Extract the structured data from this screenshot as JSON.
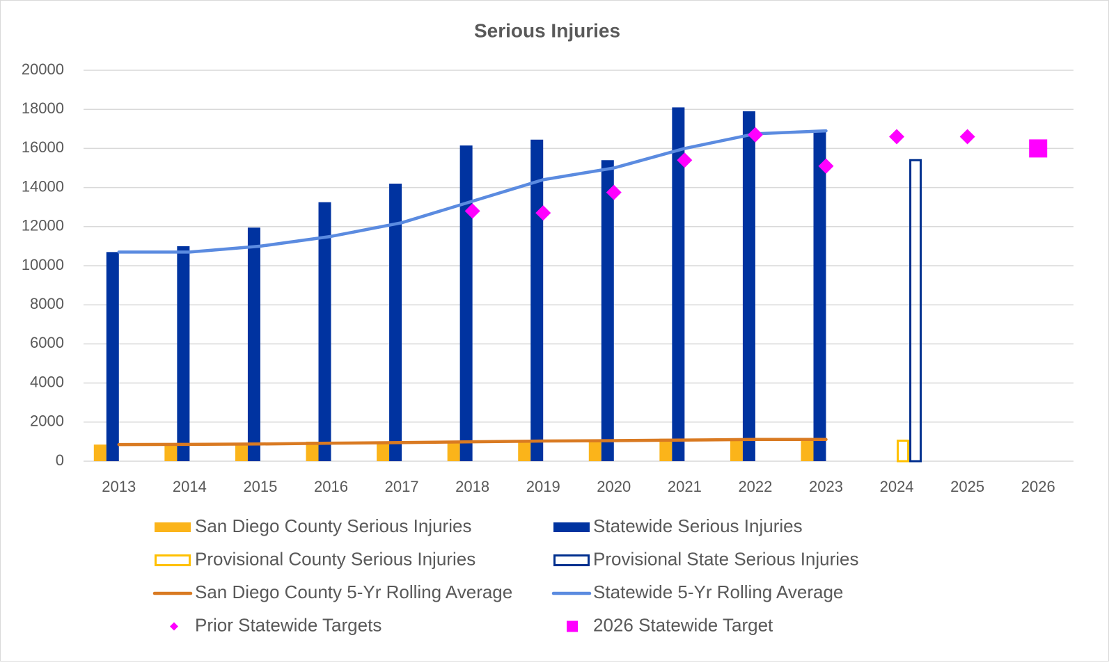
{
  "chart_data": {
    "type": "combo",
    "title": "Serious Injuries",
    "categories": [
      "2013",
      "2014",
      "2015",
      "2016",
      "2017",
      "2018",
      "2019",
      "2020",
      "2021",
      "2022",
      "2023",
      "2024",
      "2025",
      "2026"
    ],
    "ylim": [
      0,
      20000
    ],
    "yticks": [
      0,
      2000,
      4000,
      6000,
      8000,
      10000,
      12000,
      14000,
      16000,
      18000,
      20000
    ],
    "grid": true,
    "series": [
      {
        "name": "San Diego County Serious Injuries",
        "type": "bar",
        "color": "#fbb41a",
        "values": [
          850,
          880,
          900,
          1000,
          950,
          1050,
          1050,
          1050,
          1150,
          1100,
          1100,
          null,
          null,
          null
        ]
      },
      {
        "name": "Statewide Serious Injuries",
        "type": "bar",
        "color": "#0033a0",
        "values": [
          10700,
          11000,
          11950,
          13250,
          14200,
          16150,
          16450,
          15400,
          18100,
          17900,
          16900,
          null,
          null,
          null
        ]
      },
      {
        "name": "Provisional County Serious Injuries",
        "type": "bar-outline",
        "color": "#ffc000",
        "values": [
          null,
          null,
          null,
          null,
          null,
          null,
          null,
          null,
          null,
          null,
          null,
          1050,
          null,
          null
        ]
      },
      {
        "name": "Provisional State Serious Injuries",
        "type": "bar-outline",
        "color": "#002f8e",
        "values": [
          null,
          null,
          null,
          null,
          null,
          null,
          null,
          null,
          null,
          null,
          null,
          15400,
          null,
          null
        ]
      },
      {
        "name": "San Diego County 5-Yr Rolling Average",
        "type": "line",
        "color": "#d97a22",
        "values": [
          850,
          860,
          880,
          920,
          950,
          990,
          1030,
          1050,
          1080,
          1110,
          1110,
          null,
          null,
          null
        ]
      },
      {
        "name": "Statewide 5-Yr Rolling Average",
        "type": "line",
        "color": "#5b8be0",
        "values": [
          10700,
          10700,
          11000,
          11500,
          12200,
          13300,
          14400,
          15000,
          16000,
          16750,
          16900,
          null,
          null,
          null
        ]
      },
      {
        "name": "Prior Statewide Targets",
        "type": "diamond",
        "color": "#ff00ff",
        "values": [
          null,
          null,
          null,
          null,
          null,
          12800,
          12700,
          13750,
          15400,
          16700,
          15100,
          16600,
          16600,
          null
        ]
      },
      {
        "name": "2026 Statewide Target",
        "type": "square",
        "color": "#ff00ff",
        "values": [
          null,
          null,
          null,
          null,
          null,
          null,
          null,
          null,
          null,
          null,
          null,
          null,
          null,
          16000
        ]
      }
    ]
  }
}
